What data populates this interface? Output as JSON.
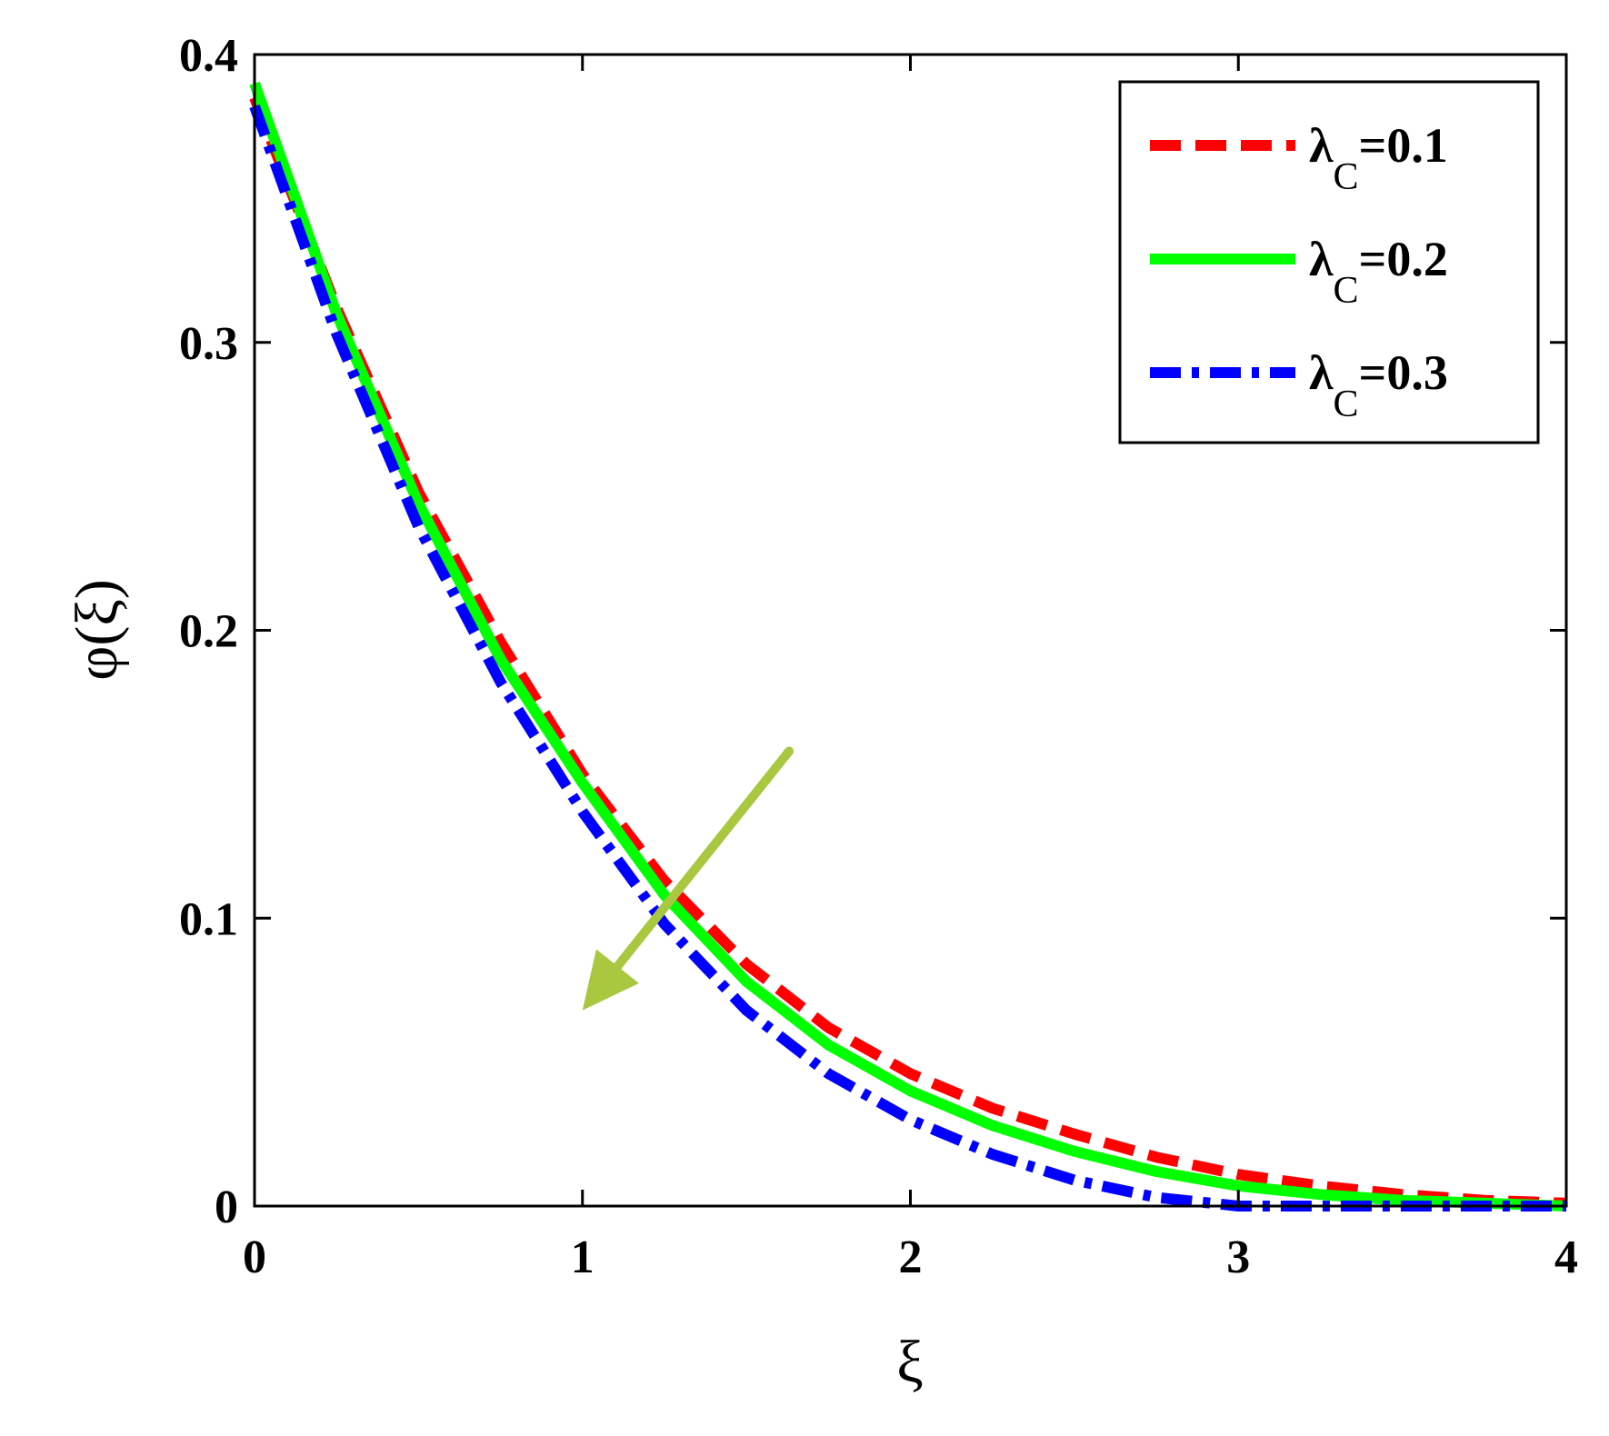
{
  "chart_data": {
    "type": "line",
    "xlabel": "ξ",
    "ylabel": "φ(ξ)",
    "xlim": [
      0,
      4
    ],
    "ylim": [
      0,
      0.4
    ],
    "xticks": [
      "0",
      "1",
      "2",
      "3",
      "4"
    ],
    "yticks": [
      "0",
      "0.1",
      "0.2",
      "0.3",
      "0.4"
    ],
    "grid": false,
    "legend_position": "top-right",
    "legend": [
      {
        "symbol": "λ",
        "sub": "C",
        "value": "=0.1"
      },
      {
        "symbol": "λ",
        "sub": "C",
        "value": "=0.2"
      },
      {
        "symbol": "λ",
        "sub": "C",
        "value": "=0.3"
      }
    ],
    "x": [
      0,
      0.25,
      0.5,
      0.75,
      1.0,
      1.25,
      1.5,
      1.75,
      2.0,
      2.25,
      2.5,
      2.75,
      3.0,
      3.25,
      3.5,
      3.75,
      4.0
    ],
    "series": [
      {
        "color": "#ff0000",
        "dash": "dashed",
        "values": [
          0.385,
          0.312,
          0.248,
          0.196,
          0.15,
          0.113,
          0.084,
          0.062,
          0.046,
          0.034,
          0.025,
          0.017,
          0.011,
          0.007,
          0.004,
          0.002,
          0.001
        ]
      },
      {
        "color": "#00ff00",
        "dash": "solid",
        "values": [
          0.39,
          0.31,
          0.244,
          0.19,
          0.147,
          0.108,
          0.078,
          0.056,
          0.04,
          0.028,
          0.019,
          0.012,
          0.007,
          0.004,
          0.002,
          0.001,
          0.0
        ]
      },
      {
        "color": "#0000ff",
        "dash": "dashdot",
        "values": [
          0.382,
          0.303,
          0.236,
          0.182,
          0.137,
          0.098,
          0.068,
          0.046,
          0.03,
          0.018,
          0.009,
          0.003,
          0.0,
          0.0,
          0.0,
          0.0,
          0.0
        ]
      }
    ],
    "annotation": {
      "type": "arrow",
      "color": "#a8c840",
      "from": [
        1.63,
        0.158
      ],
      "to": [
        1.0,
        0.068
      ]
    }
  }
}
